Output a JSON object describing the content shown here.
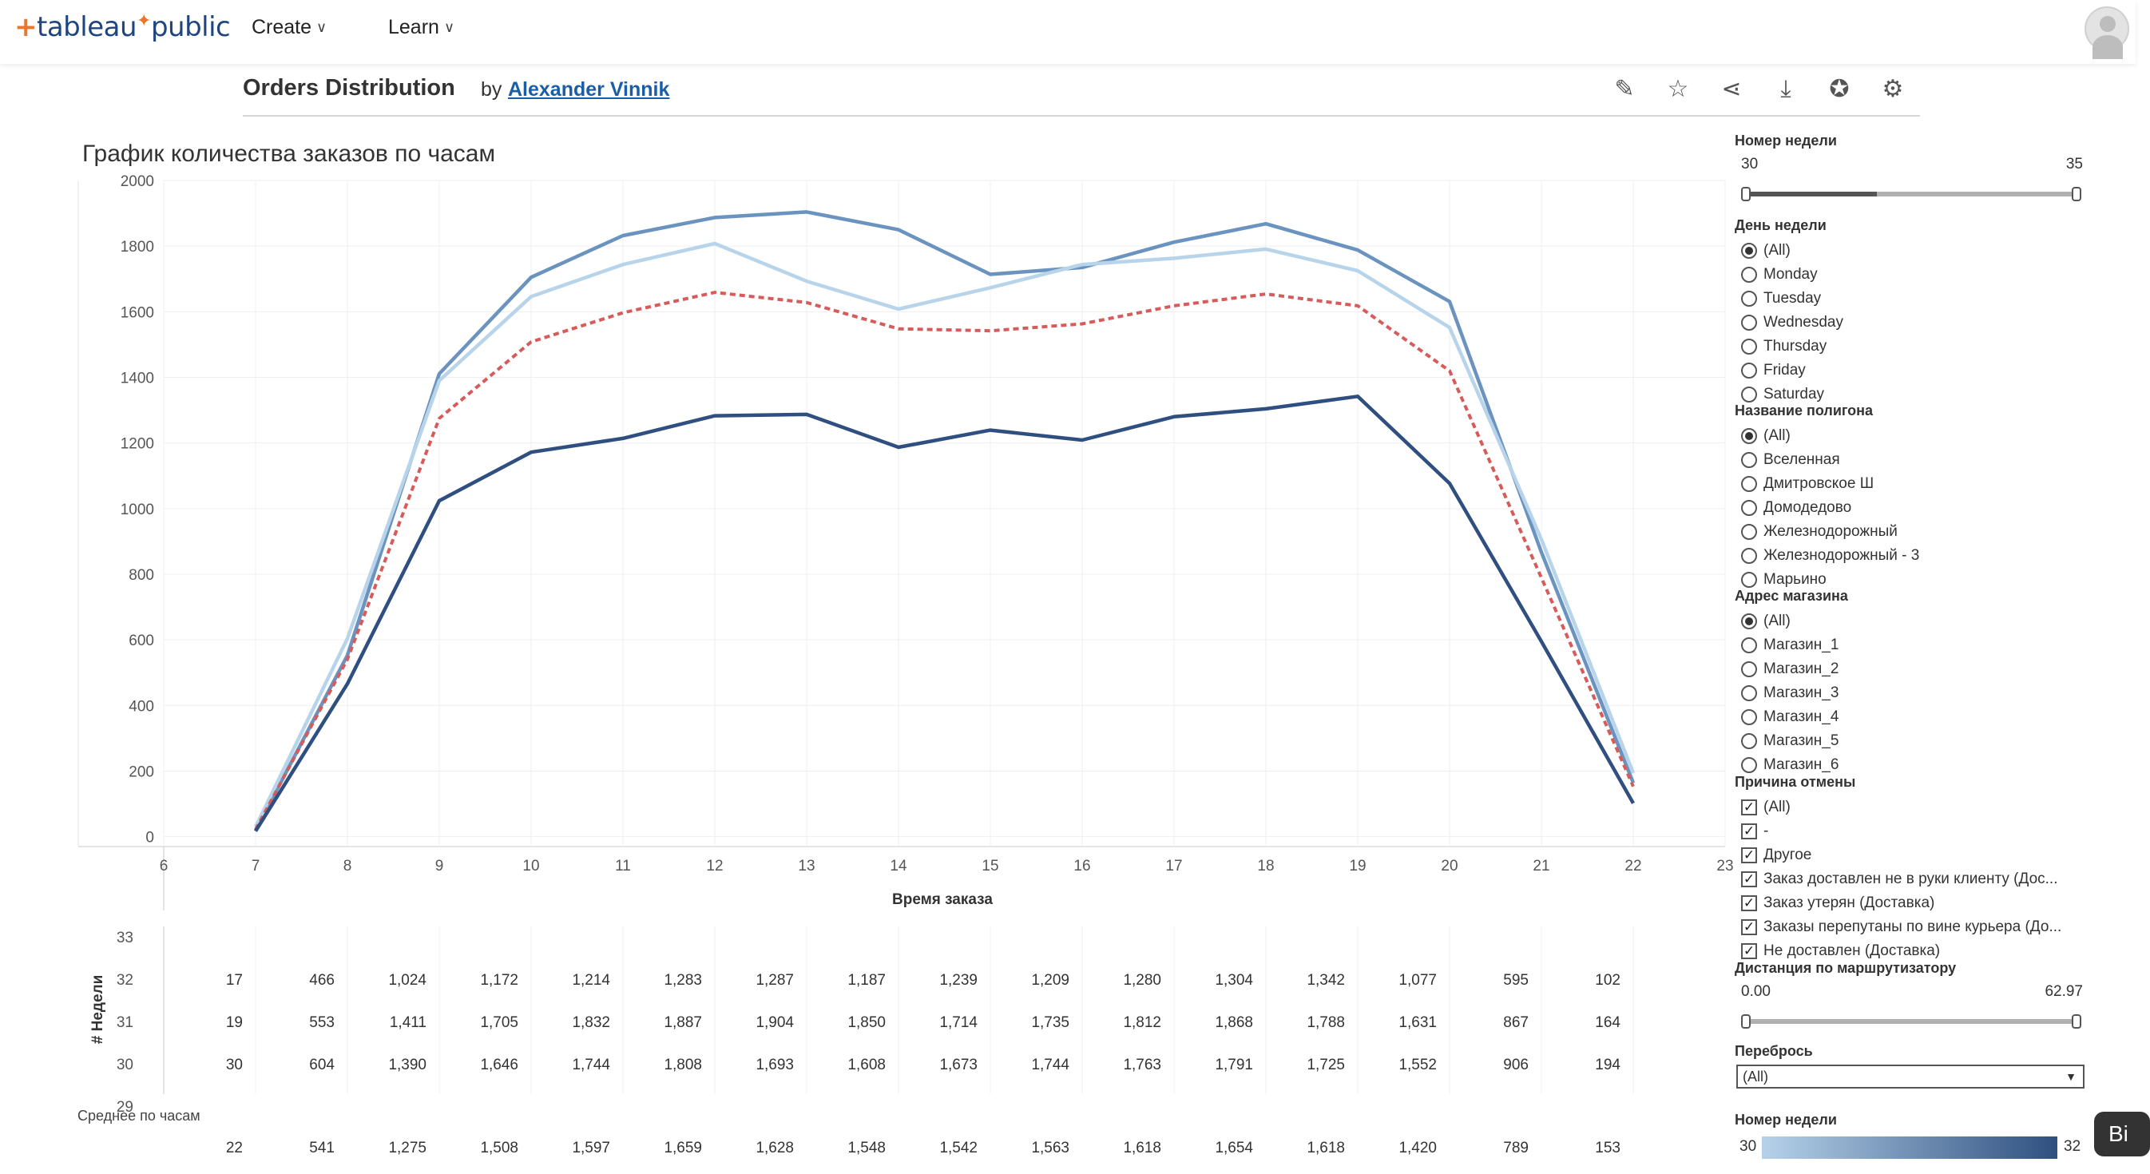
{
  "nav": {
    "logo_text": "tableau",
    "logo_public": "public",
    "menu": [
      {
        "label": "Create"
      },
      {
        "label": "Learn"
      }
    ]
  },
  "viz": {
    "title": "Orders Distribution",
    "by": "by",
    "author": "Alexander Vinnik",
    "toolbar_icons": [
      "edit-icon",
      "star-icon",
      "share-icon",
      "download-icon",
      "badge-icon",
      "settings-icon"
    ]
  },
  "chart_data": {
    "type": "line",
    "title": "График количества заказов по часам",
    "xlabel": "Время заказа",
    "ylabel": "",
    "x": [
      7,
      8,
      9,
      10,
      11,
      12,
      13,
      14,
      15,
      16,
      17,
      18,
      19,
      20,
      21,
      22
    ],
    "x_ticks": [
      6,
      7,
      8,
      9,
      10,
      11,
      12,
      13,
      14,
      15,
      16,
      17,
      18,
      19,
      20,
      21,
      22,
      23
    ],
    "y_ticks": [
      0,
      200,
      400,
      600,
      800,
      1000,
      1200,
      1400,
      1600,
      1800,
      2000
    ],
    "xlim": [
      6,
      23
    ],
    "ylim": [
      -30,
      2000
    ],
    "grid": true,
    "series": [
      {
        "name": "31",
        "color": "#6b93bf",
        "dash": false,
        "values": [
          19,
          553,
          1411,
          1705,
          1832,
          1887,
          1904,
          1850,
          1714,
          1735,
          1812,
          1868,
          1788,
          1631,
          867,
          164
        ]
      },
      {
        "name": "30",
        "color": "#b8d4ea",
        "dash": false,
        "values": [
          30,
          604,
          1390,
          1646,
          1744,
          1808,
          1693,
          1608,
          1673,
          1744,
          1763,
          1791,
          1725,
          1552,
          906,
          194
        ]
      },
      {
        "name": "Среднее по часам",
        "color": "#d65b5b",
        "dash": true,
        "values": [
          22,
          541,
          1275,
          1508,
          1597,
          1659,
          1628,
          1548,
          1542,
          1563,
          1618,
          1654,
          1618,
          1420,
          789,
          153
        ]
      },
      {
        "name": "32",
        "color": "#2f4f80",
        "dash": false,
        "values": [
          17,
          466,
          1024,
          1172,
          1214,
          1283,
          1287,
          1187,
          1239,
          1209,
          1280,
          1304,
          1342,
          1077,
          595,
          102
        ]
      }
    ],
    "table": {
      "row_axis_label": "# Недели",
      "row_ticks": [
        "33",
        "32",
        "31",
        "30",
        "29"
      ],
      "rows": [
        {
          "week": "32",
          "values": [
            "17",
            "466",
            "1,024",
            "1,172",
            "1,214",
            "1,283",
            "1,287",
            "1,187",
            "1,239",
            "1,209",
            "1,280",
            "1,304",
            "1,342",
            "1,077",
            "595",
            "102"
          ]
        },
        {
          "week": "31",
          "values": [
            "19",
            "553",
            "1,411",
            "1,705",
            "1,832",
            "1,887",
            "1,904",
            "1,850",
            "1,714",
            "1,735",
            "1,812",
            "1,868",
            "1,788",
            "1,631",
            "867",
            "164"
          ]
        },
        {
          "week": "30",
          "values": [
            "30",
            "604",
            "1,390",
            "1,646",
            "1,744",
            "1,808",
            "1,693",
            "1,608",
            "1,673",
            "1,744",
            "1,763",
            "1,791",
            "1,725",
            "1,552",
            "906",
            "194"
          ]
        }
      ],
      "avg_label": "Среднее по часам",
      "avg_values": [
        "22",
        "541",
        "1,275",
        "1,508",
        "1,597",
        "1,659",
        "1,628",
        "1,548",
        "1,542",
        "1,563",
        "1,618",
        "1,654",
        "1,618",
        "1,420",
        "789",
        "153"
      ]
    }
  },
  "filters": {
    "week_range": {
      "title": "Номер недели",
      "min": "30",
      "max": "35"
    },
    "weekday": {
      "title": "День недели",
      "options": [
        "(All)",
        "Monday",
        "Tuesday",
        "Wednesday",
        "Thursday",
        "Friday",
        "Saturday"
      ]
    },
    "polygon": {
      "title": "Название полигона",
      "options": [
        "(All)",
        "Вселенная",
        "Дмитровское Ш",
        "Домодедово",
        "Железнодорожный",
        "Железнодорожный - 3",
        "Марьино"
      ]
    },
    "store": {
      "title": "Адрес магазина",
      "options": [
        "(All)",
        "Магазин_1",
        "Магазин_2",
        "Магазин_3",
        "Магазин_4",
        "Магазин_5",
        "Магазин_6"
      ]
    },
    "cancel_reason": {
      "title": "Причина отмены",
      "options": [
        "(All)",
        "-",
        "Другое",
        "Заказ доставлен не в руки клиенту (Дос...",
        "Заказ утерян (Доставка)",
        "Заказы перепутаны по вине курьера (До...",
        "Не доставлен (Доставка)"
      ]
    },
    "distance": {
      "title": "Дистанция по маршрутизатору",
      "min": "0.00",
      "max": "62.97"
    },
    "overshoot": {
      "title": "Перебрось",
      "value": "(All)"
    },
    "week_legend": {
      "title": "Номер недели",
      "min": "30",
      "max": "32"
    },
    "pill_text": "Bi"
  }
}
